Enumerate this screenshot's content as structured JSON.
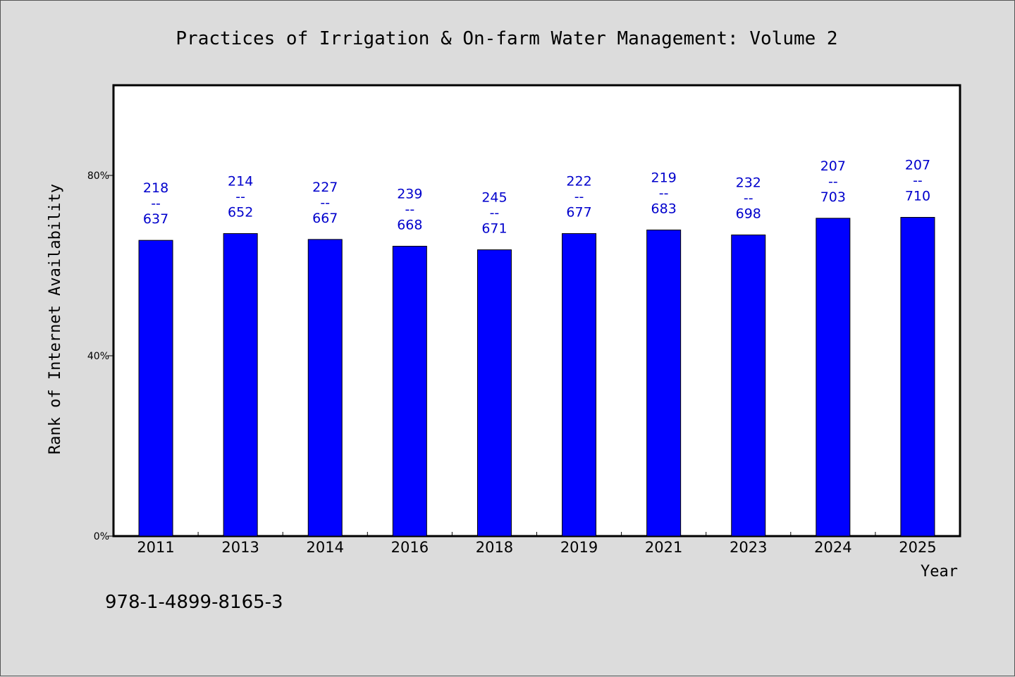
{
  "chart_data": {
    "type": "bar",
    "title": "Practices of Irrigation & On-farm Water Management: Volume 2",
    "xlabel": "Year",
    "ylabel": "Rank of Internet Availability",
    "categories": [
      "2011",
      "2013",
      "2014",
      "2016",
      "2018",
      "2019",
      "2021",
      "2023",
      "2024",
      "2025"
    ],
    "values": [
      65.6,
      67.1,
      65.8,
      64.3,
      63.5,
      67.1,
      67.9,
      66.8,
      70.5,
      70.7
    ],
    "labels_top": [
      "218",
      "214",
      "227",
      "239",
      "245",
      "222",
      "219",
      "232",
      "207",
      "207"
    ],
    "labels_sep": "--",
    "labels_bottom": [
      "637",
      "652",
      "667",
      "668",
      "671",
      "677",
      "683",
      "698",
      "703",
      "710"
    ],
    "ylim": [
      0,
      100
    ],
    "yticks": [
      0,
      40,
      80
    ],
    "ytick_labels": [
      "0%",
      "40%",
      "80%"
    ],
    "grid": false,
    "bar_color": "#0000ff",
    "label_color": "#0000cc"
  },
  "footer": {
    "isbn": "978-1-4899-8165-3"
  }
}
